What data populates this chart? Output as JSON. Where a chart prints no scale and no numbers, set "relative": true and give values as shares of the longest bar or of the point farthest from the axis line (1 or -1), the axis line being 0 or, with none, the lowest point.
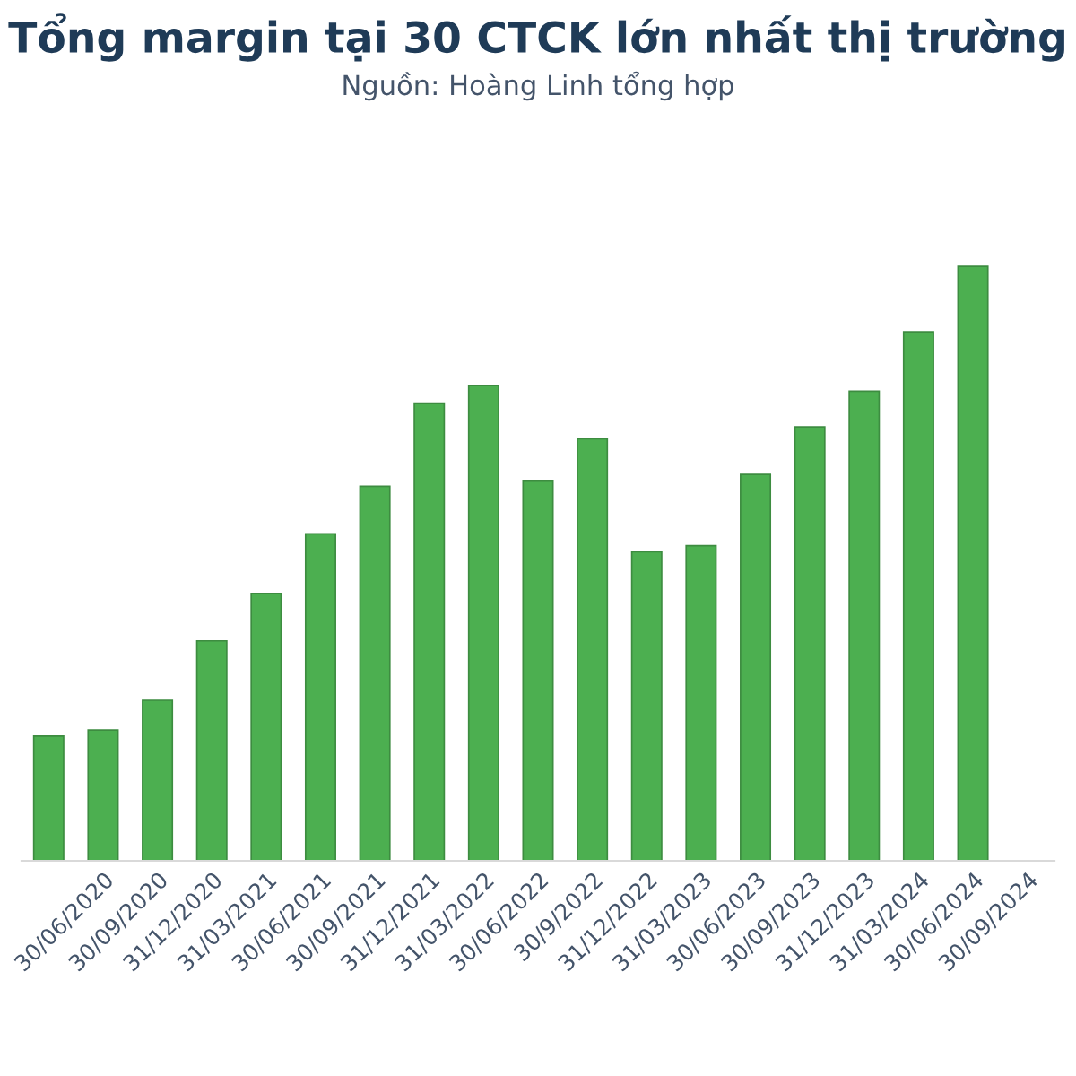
{
  "chart_data": {
    "type": "bar",
    "title": "Tổng margin tại 30 CTCK lớn nhất thị trường",
    "subtitle": "Nguồn: Hoàng Linh tổng hợp",
    "relative": true,
    "color": "#4caf50",
    "categories": [
      null,
      "30/06/2020",
      "30/09/2020",
      "31/12/2020",
      "31/03/2021",
      "30/06/2021",
      "30/09/2021",
      "31/12/2021",
      "31/03/2022",
      "30/06/2022",
      "30/9/2022",
      "31/12/2022",
      "31/03/2023",
      "30/06/2023",
      "30/09/2023",
      "31/12/2023",
      "31/03/2024",
      "30/06/2024",
      "30/09/2024"
    ],
    "values": [
      0.21,
      0.22,
      0.27,
      0.37,
      0.45,
      0.55,
      0.63,
      0.77,
      0.8,
      0.64,
      0.71,
      0.52,
      0.53,
      0.65,
      0.73,
      0.79,
      0.89,
      1.0,
      null
    ],
    "grid": false,
    "legend": false
  }
}
